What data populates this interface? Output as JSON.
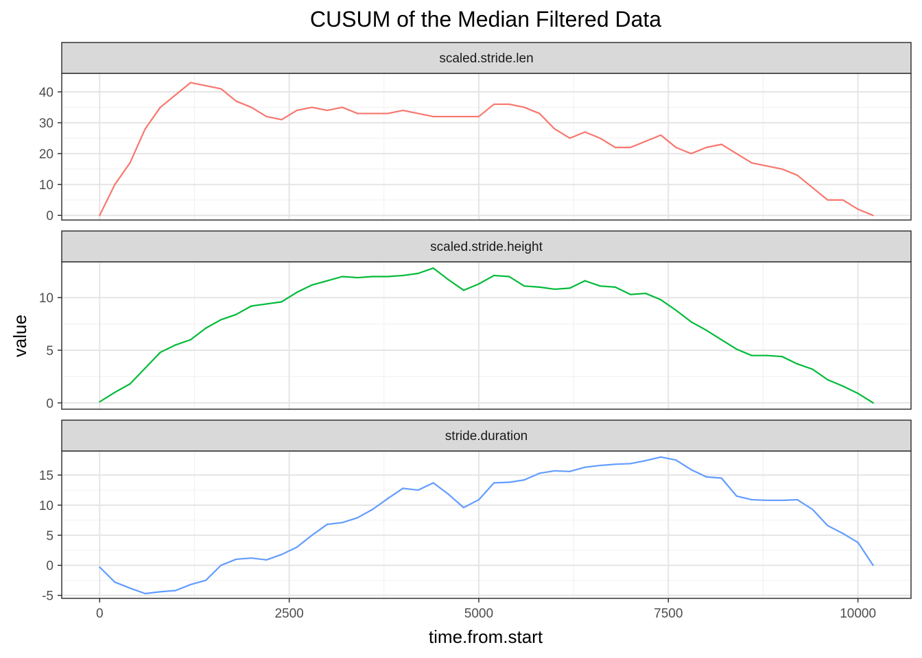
{
  "chart_data": {
    "type": "line",
    "title": "CUSUM of the Median Filtered Data",
    "xlabel": "time.from.start",
    "ylabel": "value",
    "xlim": [
      -500,
      10700
    ],
    "x_ticks": [
      0,
      2500,
      5000,
      7500,
      10000
    ],
    "x_tick_labels": [
      "0",
      "2500",
      "5000",
      "7500",
      "10000"
    ],
    "grid": true,
    "legend": "none",
    "panels": [
      {
        "strip_label": "scaled.stride.len",
        "color": "#F8766D",
        "ylim": [
          -1.5,
          46
        ],
        "y_ticks": [
          0,
          10,
          20,
          30,
          40
        ],
        "y_tick_labels": [
          "0",
          "10",
          "20",
          "30",
          "40"
        ],
        "x": [
          0,
          200,
          400,
          600,
          800,
          1000,
          1200,
          1400,
          1600,
          1800,
          2000,
          2200,
          2400,
          2600,
          2800,
          3000,
          3200,
          3400,
          3600,
          3800,
          4000,
          4200,
          4400,
          4600,
          4800,
          5000,
          5200,
          5400,
          5600,
          5800,
          6000,
          6200,
          6400,
          6600,
          6800,
          7000,
          7200,
          7400,
          7600,
          7800,
          8000,
          8200,
          8400,
          8600,
          8800,
          9000,
          9200,
          9400,
          9600,
          9800,
          10000,
          10200
        ],
        "values": [
          0,
          10,
          17,
          28,
          35,
          39,
          43,
          42,
          41,
          37,
          35,
          32,
          31,
          34,
          35,
          34,
          35,
          33,
          33,
          33,
          34,
          33,
          32,
          32,
          32,
          32,
          36,
          36,
          35,
          33,
          28,
          25,
          27,
          25,
          22,
          22,
          24,
          26,
          22,
          20,
          22,
          23,
          20,
          17,
          16,
          15,
          13,
          9,
          5,
          5,
          2,
          0
        ]
      },
      {
        "strip_label": "scaled.stride.height",
        "color": "#00BA38",
        "ylim": [
          -0.6,
          13.4
        ],
        "y_ticks": [
          0,
          5,
          10
        ],
        "y_tick_labels": [
          "0",
          "5",
          "10"
        ],
        "x": [
          0,
          200,
          400,
          600,
          800,
          1000,
          1200,
          1400,
          1600,
          1800,
          2000,
          2200,
          2400,
          2600,
          2800,
          3000,
          3200,
          3400,
          3600,
          3800,
          4000,
          4200,
          4400,
          4600,
          4800,
          5000,
          5200,
          5400,
          5600,
          5800,
          6000,
          6200,
          6400,
          6600,
          6800,
          7000,
          7200,
          7400,
          7600,
          7800,
          8000,
          8200,
          8400,
          8600,
          8800,
          9000,
          9200,
          9400,
          9600,
          9800,
          10000,
          10200
        ],
        "values": [
          0.1,
          1.0,
          1.8,
          3.3,
          4.8,
          5.5,
          6.0,
          7.1,
          7.9,
          8.4,
          9.2,
          9.4,
          9.6,
          10.5,
          11.2,
          11.6,
          12.0,
          11.9,
          12.0,
          12.0,
          12.1,
          12.3,
          12.8,
          11.7,
          10.7,
          11.3,
          12.1,
          12.0,
          11.1,
          11.0,
          10.8,
          10.9,
          11.6,
          11.1,
          11.0,
          10.3,
          10.4,
          9.8,
          8.8,
          7.7,
          6.9,
          6.0,
          5.1,
          4.5,
          4.5,
          4.4,
          3.7,
          3.2,
          2.2,
          1.6,
          0.9,
          0.0
        ]
      },
      {
        "strip_label": "stride.duration",
        "color": "#619CFF",
        "ylim": [
          -5.5,
          19
        ],
        "y_ticks": [
          -5,
          0,
          5,
          10,
          15
        ],
        "y_tick_labels": [
          "-5",
          "0",
          "5",
          "10",
          "15"
        ],
        "x": [
          0,
          200,
          400,
          600,
          800,
          1000,
          1200,
          1400,
          1600,
          1800,
          2000,
          2200,
          2400,
          2600,
          2800,
          3000,
          3200,
          3400,
          3600,
          3800,
          4000,
          4200,
          4400,
          4600,
          4800,
          5000,
          5200,
          5400,
          5600,
          5800,
          6000,
          6200,
          6400,
          6600,
          6800,
          7000,
          7200,
          7400,
          7600,
          7800,
          8000,
          8200,
          8400,
          8600,
          8800,
          9000,
          9200,
          9400,
          9600,
          9800,
          10000,
          10200
        ],
        "values": [
          -0.3,
          -2.8,
          -3.8,
          -4.7,
          -4.4,
          -4.2,
          -3.2,
          -2.5,
          0.0,
          1.0,
          1.2,
          0.9,
          1.8,
          3.0,
          5.0,
          6.8,
          7.1,
          7.9,
          9.3,
          11.1,
          12.8,
          12.5,
          13.7,
          11.8,
          9.6,
          10.9,
          13.7,
          13.8,
          14.2,
          15.3,
          15.7,
          15.6,
          16.3,
          16.6,
          16.8,
          16.9,
          17.4,
          18.0,
          17.5,
          15.9,
          14.7,
          14.5,
          11.5,
          10.9,
          10.8,
          10.8,
          10.9,
          9.3,
          6.6,
          5.3,
          3.8,
          0.0
        ]
      }
    ]
  }
}
